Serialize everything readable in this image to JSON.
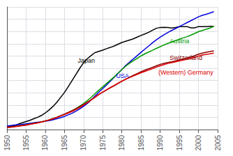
{
  "chart_data": {
    "type": "line",
    "xlim": [
      1950,
      2005
    ],
    "ylim": [
      0.0,
      1.0
    ],
    "xticks": [
      1950,
      1955,
      1960,
      1965,
      1970,
      1975,
      1980,
      1985,
      1990,
      1995,
      2000,
      2005
    ],
    "yticks": [
      0.0,
      0.1,
      0.2,
      0.3,
      0.4,
      0.5,
      0.6,
      0.7,
      0.8,
      0.9,
      1.0
    ],
    "grid": true,
    "tick_labels": "x",
    "x": [
      1950,
      1951,
      1952,
      1953,
      1954,
      1955,
      1956,
      1957,
      1958,
      1959,
      1960,
      1961,
      1962,
      1963,
      1964,
      1965,
      1966,
      1967,
      1968,
      1969,
      1970,
      1971,
      1972,
      1973,
      1974,
      1975,
      1976,
      1977,
      1978,
      1979,
      1980,
      1981,
      1982,
      1983,
      1984,
      1985,
      1986,
      1987,
      1988,
      1989,
      1990,
      1991,
      1992,
      1993,
      1994,
      1995,
      1996,
      1997,
      1998,
      1999,
      2000,
      2001,
      2002,
      2003,
      2004
    ],
    "series": [
      {
        "name": "Japan",
        "color": "#000000",
        "values": [
          0.02,
          0.025,
          0.033,
          0.045,
          0.055,
          0.065,
          0.075,
          0.088,
          0.1,
          0.115,
          0.135,
          0.16,
          0.188,
          0.222,
          0.262,
          0.302,
          0.35,
          0.4,
          0.45,
          0.5,
          0.545,
          0.578,
          0.604,
          0.628,
          0.638,
          0.648,
          0.66,
          0.67,
          0.682,
          0.696,
          0.71,
          0.72,
          0.73,
          0.74,
          0.754,
          0.768,
          0.78,
          0.793,
          0.81,
          0.826,
          0.833,
          0.834,
          0.832,
          0.828,
          0.832,
          0.84,
          0.84,
          0.84,
          0.83,
          0.83,
          0.84,
          0.84,
          0.84,
          0.842,
          0.842
        ]
      },
      {
        "name": "USA",
        "color": "#0000dd",
        "values": [
          0.028,
          0.033,
          0.037,
          0.04,
          0.043,
          0.047,
          0.051,
          0.055,
          0.059,
          0.063,
          0.068,
          0.073,
          0.08,
          0.088,
          0.097,
          0.107,
          0.12,
          0.133,
          0.15,
          0.168,
          0.19,
          0.214,
          0.242,
          0.274,
          0.305,
          0.334,
          0.364,
          0.395,
          0.426,
          0.458,
          0.49,
          0.522,
          0.55,
          0.576,
          0.603,
          0.63,
          0.656,
          0.682,
          0.708,
          0.732,
          0.754,
          0.774,
          0.792,
          0.808,
          0.824,
          0.84,
          0.856,
          0.872,
          0.888,
          0.904,
          0.92,
          0.932,
          0.94,
          0.95,
          0.962
        ]
      },
      {
        "name": "Austria",
        "color": "#009900",
        "values": [
          0.018,
          0.022,
          0.026,
          0.03,
          0.034,
          0.039,
          0.044,
          0.05,
          0.056,
          0.062,
          0.07,
          0.079,
          0.089,
          0.1,
          0.112,
          0.125,
          0.139,
          0.154,
          0.171,
          0.191,
          0.213,
          0.237,
          0.263,
          0.293,
          0.322,
          0.349,
          0.376,
          0.403,
          0.43,
          0.46,
          0.49,
          0.517,
          0.54,
          0.561,
          0.581,
          0.601,
          0.618,
          0.632,
          0.647,
          0.662,
          0.676,
          0.69,
          0.703,
          0.713,
          0.725,
          0.737,
          0.748,
          0.758,
          0.77,
          0.784,
          0.798,
          0.808,
          0.818,
          0.828,
          0.842
        ]
      },
      {
        "name": "Switzerland",
        "color": "#880000",
        "values": [
          0.018,
          0.022,
          0.026,
          0.03,
          0.034,
          0.039,
          0.044,
          0.05,
          0.056,
          0.062,
          0.07,
          0.079,
          0.089,
          0.1,
          0.112,
          0.125,
          0.139,
          0.154,
          0.17,
          0.187,
          0.205,
          0.224,
          0.244,
          0.265,
          0.286,
          0.305,
          0.323,
          0.341,
          0.358,
          0.376,
          0.394,
          0.411,
          0.427,
          0.442,
          0.457,
          0.472,
          0.484,
          0.496,
          0.508,
          0.52,
          0.532,
          0.54,
          0.547,
          0.553,
          0.56,
          0.568,
          0.576,
          0.584,
          0.592,
          0.602,
          0.615,
          0.624,
          0.631,
          0.636,
          0.642
        ]
      },
      {
        "name": "(Western) Germany",
        "color": "#dd0000",
        "values": [
          0.015,
          0.019,
          0.023,
          0.027,
          0.031,
          0.036,
          0.042,
          0.048,
          0.054,
          0.061,
          0.069,
          0.078,
          0.088,
          0.098,
          0.11,
          0.122,
          0.135,
          0.148,
          0.163,
          0.18,
          0.199,
          0.22,
          0.241,
          0.264,
          0.286,
          0.306,
          0.325,
          0.343,
          0.36,
          0.378,
          0.395,
          0.41,
          0.424,
          0.437,
          0.45,
          0.463,
          0.474,
          0.485,
          0.497,
          0.509,
          0.52,
          0.53,
          0.539,
          0.545,
          0.552,
          0.56,
          0.567,
          0.574,
          0.581,
          0.589,
          0.6,
          0.608,
          0.614,
          0.618,
          0.623
        ]
      }
    ],
    "annotations": [
      {
        "text": "Japan",
        "x": 1968.5,
        "y": 0.565
      },
      {
        "text": "USA",
        "x": 1978.5,
        "y": 0.435
      },
      {
        "text": "Austria",
        "x": 1992.5,
        "y": 0.722
      },
      {
        "text": "Switzerland",
        "x": 1992.5,
        "y": 0.585
      },
      {
        "text": "(Western) Germany",
        "x": 1989.5,
        "y": 0.468
      }
    ]
  }
}
